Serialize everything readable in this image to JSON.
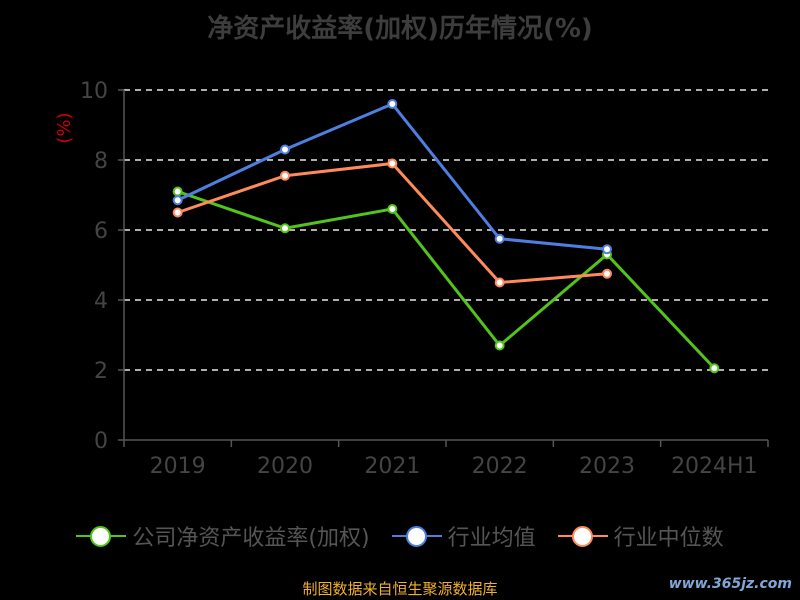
{
  "chart_data": {
    "type": "line",
    "title": "净资产收益率(加权)历年情况(%)",
    "ylabel": "(%)",
    "xlabel": "",
    "categories": [
      "2019",
      "2020",
      "2021",
      "2022",
      "2023",
      "2024H1"
    ],
    "ylim": [
      0,
      10
    ],
    "yticks": [
      0,
      2,
      4,
      6,
      8,
      10
    ],
    "grid": true,
    "legend_position": "bottom",
    "series": [
      {
        "name": "公司净资产收益率(加权)",
        "color": "#52c41a",
        "values": [
          7.1,
          6.05,
          6.6,
          2.7,
          5.3,
          2.05
        ]
      },
      {
        "name": "行业均值",
        "color": "#4e7fe0",
        "values": [
          6.85,
          8.3,
          9.6,
          5.75,
          5.45,
          null
        ]
      },
      {
        "name": "行业中位数",
        "color": "#ff8a5b",
        "values": [
          6.5,
          7.55,
          7.9,
          4.5,
          4.75,
          null
        ]
      }
    ]
  },
  "footer": {
    "source": "制图数据来自恒生聚源数据库",
    "watermark": "www.365jz.com"
  }
}
